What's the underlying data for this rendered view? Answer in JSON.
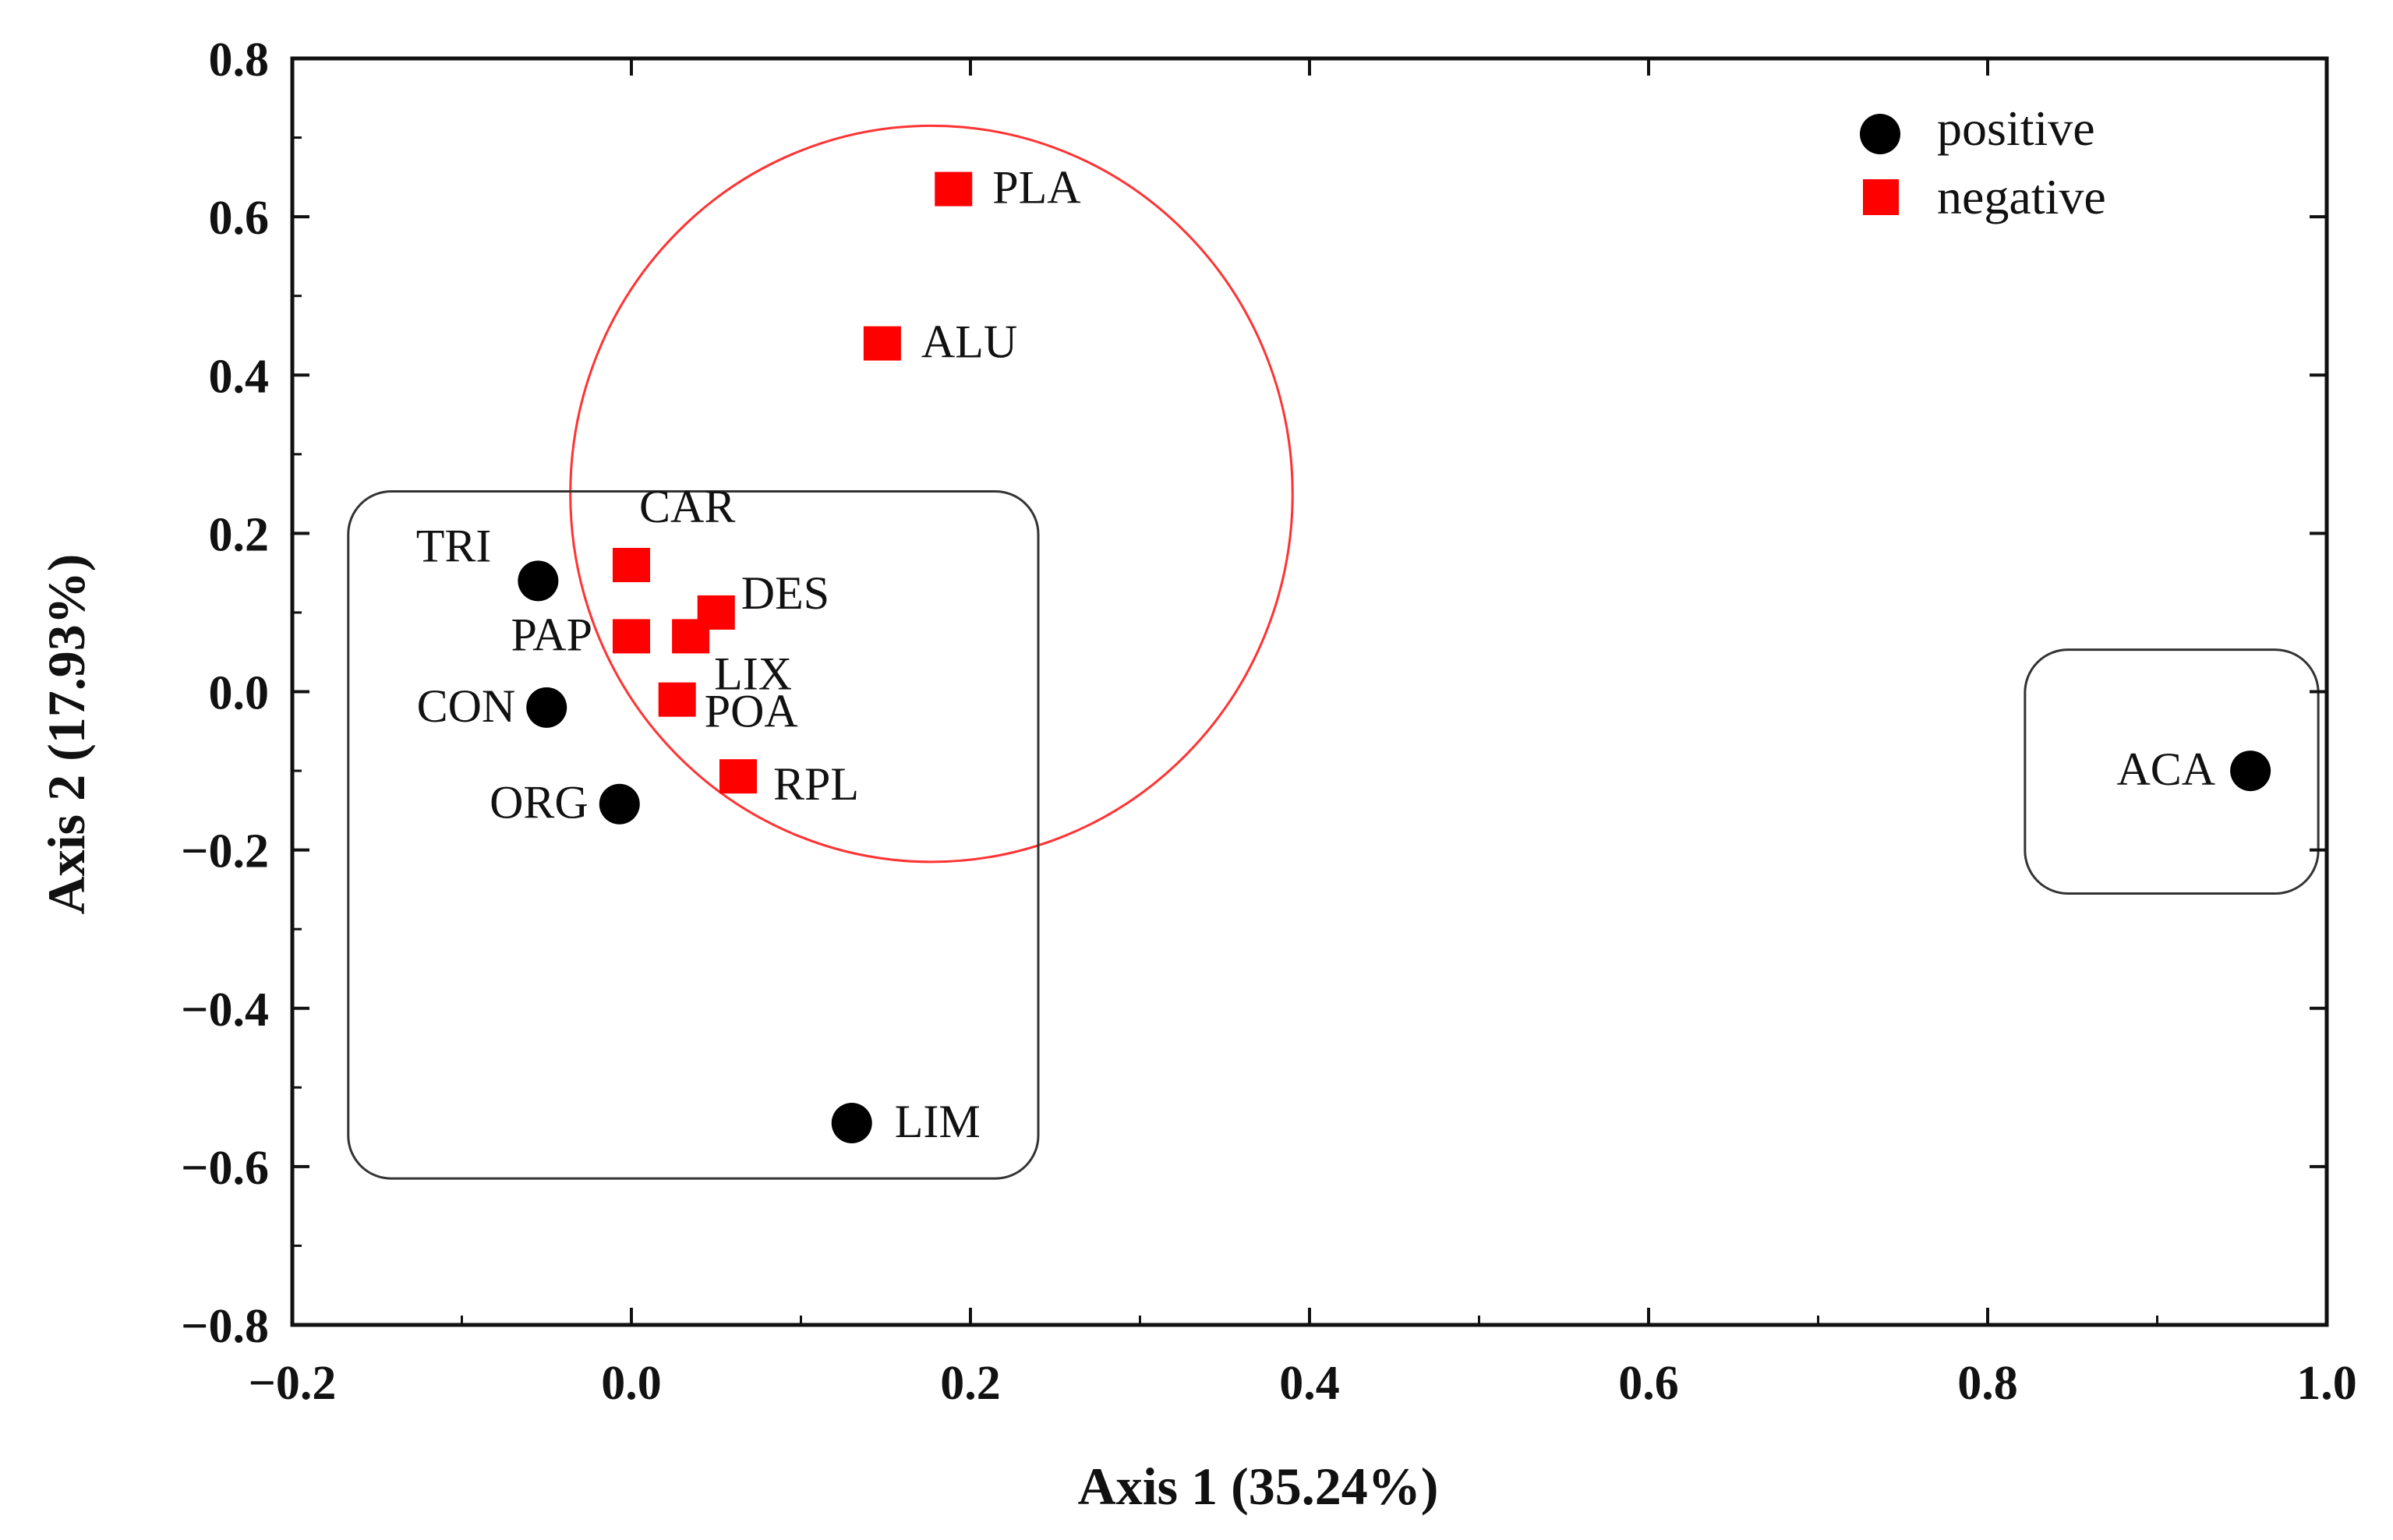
{
  "chart_data": {
    "type": "scatter",
    "xlabel": "Axis 1 (35.24%)",
    "ylabel": "Axis 2 (17.93%)",
    "xlim": [
      -0.2,
      1.0
    ],
    "ylim": [
      -0.8,
      0.8
    ],
    "x_ticks": [
      -0.2,
      0.0,
      0.2,
      0.4,
      0.6,
      0.8,
      1.0
    ],
    "y_ticks": [
      -0.8,
      -0.6,
      -0.4,
      -0.2,
      0.0,
      0.2,
      0.4,
      0.6,
      0.8
    ],
    "x_tick_labels": [
      "−0.2",
      "0.0",
      "0.2",
      "0.4",
      "0.6",
      "0.8",
      "1.0"
    ],
    "y_tick_labels": [
      "−0.8",
      "−0.6",
      "−0.4",
      "−0.2",
      "0.0",
      "0.2",
      "0.4",
      "0.6",
      "0.8"
    ],
    "legend": {
      "position": "top-right",
      "entries": [
        "positive",
        "negative"
      ]
    },
    "colors": {
      "positive": "#000000",
      "negative": "#ff0000",
      "circle": "#ff3333",
      "box": "#333333"
    },
    "series": [
      {
        "name": "positive",
        "marker": "circle",
        "points": [
          {
            "label": "TRI",
            "x": -0.055,
            "y": 0.14
          },
          {
            "label": "CON",
            "x": -0.05,
            "y": -0.02
          },
          {
            "label": "ORG",
            "x": -0.007,
            "y": -0.142
          },
          {
            "label": "LIM",
            "x": 0.13,
            "y": -0.545
          },
          {
            "label": "ACA",
            "x": 0.955,
            "y": -0.1
          }
        ]
      },
      {
        "name": "negative",
        "marker": "square",
        "points": [
          {
            "label": "PLA",
            "x": 0.19,
            "y": 0.635
          },
          {
            "label": "ALU",
            "x": 0.148,
            "y": 0.44
          },
          {
            "label": "CAR",
            "x": 0.0,
            "y": 0.16
          },
          {
            "label": "DES",
            "x": 0.05,
            "y": 0.1
          },
          {
            "label": "PAP",
            "x": 0.0,
            "y": 0.07
          },
          {
            "label": "LIX",
            "x": 0.035,
            "y": 0.07
          },
          {
            "label": "POA",
            "x": 0.027,
            "y": -0.01
          },
          {
            "label": "RPL",
            "x": 0.063,
            "y": -0.107
          }
        ]
      }
    ],
    "annotations": [
      {
        "type": "ellipse",
        "name": "negative-group-circle",
        "cx": 0.177,
        "cy": 0.25,
        "rx": 0.213,
        "ry": 0.465
      },
      {
        "type": "rounded-box",
        "name": "positive-group-box",
        "x0": -0.167,
        "x1": 0.24,
        "y0": -0.615,
        "y1": 0.253
      },
      {
        "type": "rounded-box",
        "name": "aca-box",
        "x0": 0.822,
        "x1": 0.995,
        "y0": -0.255,
        "y1": 0.053
      }
    ]
  }
}
